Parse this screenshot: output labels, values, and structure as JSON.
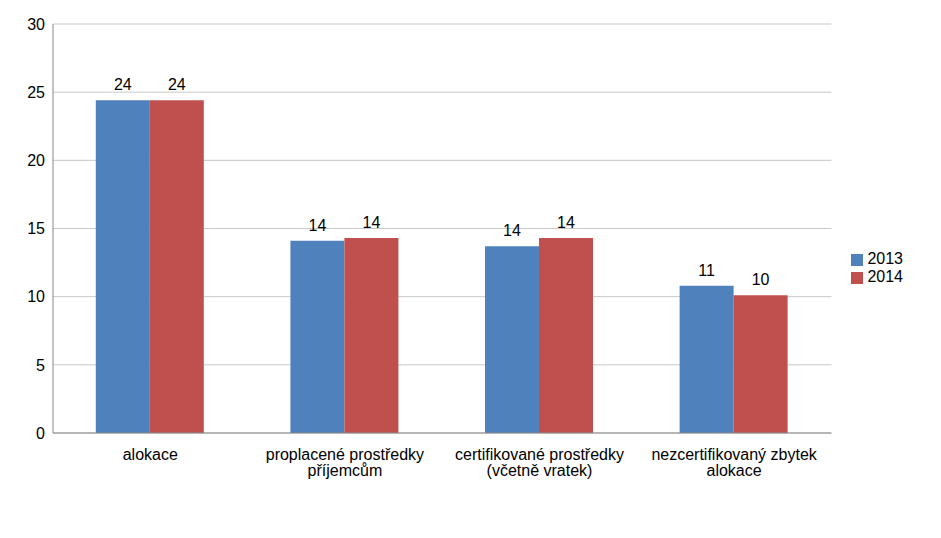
{
  "chart_data": {
    "type": "bar",
    "categories": [
      "alokace",
      "proplacené prostředky příjemcům",
      "certifikované prostředky (včetně vratek)",
      "nezcertifikovaný zbytek alokace"
    ],
    "series": [
      {
        "name": "2013",
        "color": "#4f81bd",
        "values": [
          24.4,
          14.1,
          13.7,
          10.8
        ],
        "value_labels": [
          "24",
          "14",
          "14",
          "11"
        ]
      },
      {
        "name": "2014",
        "color": "#c0504d",
        "values": [
          24.4,
          14.3,
          14.3,
          10.1
        ],
        "value_labels": [
          "24",
          "14",
          "14",
          "10"
        ]
      }
    ],
    "ylim": [
      0,
      30
    ],
    "yticks": [
      0,
      5,
      10,
      15,
      20,
      25,
      30
    ],
    "grid": true,
    "legend": "right",
    "data_labels": true
  }
}
